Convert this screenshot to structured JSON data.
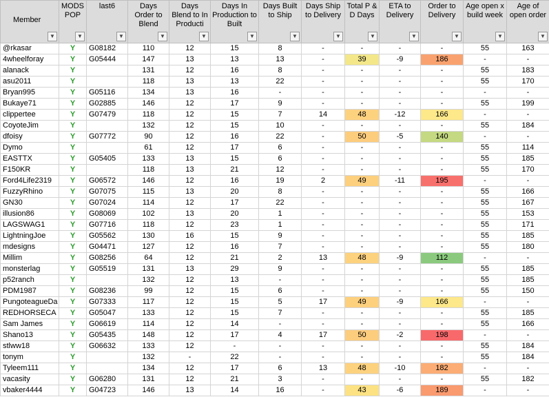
{
  "table": {
    "header": [
      "Member",
      "MODS POP",
      "last6",
      "Days Order to Blend",
      "Days Blend to In Producti",
      "Days In Production to Built",
      "Days Built to Ship",
      "Days Ship to Delivery",
      "Total P & D Days",
      "ETA to Delivery",
      "Order to Delivery",
      "Age open x build week",
      "Age of open order"
    ],
    "rows": [
      [
        "@rkasar",
        "Y",
        "G08182",
        "110",
        "12",
        "15",
        "8",
        "-",
        "-",
        "-",
        "-",
        "55",
        "163"
      ],
      [
        "4wheelforay",
        "Y",
        "G05444",
        "147",
        "13",
        "13",
        "13",
        "-",
        {
          "text": "39",
          "color": "#f3e78a"
        },
        "-9",
        {
          "text": "186",
          "color": "#f9a26f"
        },
        "-",
        "-"
      ],
      [
        "alanack",
        "Y",
        "",
        "131",
        "12",
        "16",
        "8",
        "-",
        "-",
        "-",
        "-",
        "55",
        "183"
      ],
      [
        "asu2011",
        "Y",
        "",
        "118",
        "13",
        "13",
        "22",
        "-",
        "-",
        "-",
        "-",
        "55",
        "170"
      ],
      [
        "Bryan995",
        "Y",
        "G05116",
        "134",
        "13",
        "16",
        "-",
        "-",
        "-",
        "-",
        "-",
        "-",
        "-"
      ],
      [
        "Bukaye71",
        "Y",
        "G02885",
        "146",
        "12",
        "17",
        "9",
        "-",
        "-",
        "-",
        "-",
        "55",
        "199"
      ],
      [
        "clippertee",
        "Y",
        "G07479",
        "118",
        "12",
        "15",
        "7",
        "14",
        {
          "text": "48",
          "color": "#fdd27f"
        },
        "-12",
        {
          "text": "166",
          "color": "#fde88a"
        },
        "-",
        "-"
      ],
      [
        "CoyoteJim",
        "Y",
        "",
        "132",
        "12",
        "15",
        "10",
        "-",
        "-",
        "-",
        "-",
        "55",
        "184"
      ],
      [
        "dfoisy",
        "Y",
        "G07772",
        "90",
        "12",
        "16",
        "22",
        "-",
        {
          "text": "50",
          "color": "#fdcd7e"
        },
        "-5",
        {
          "text": "140",
          "color": "#c4d981"
        },
        "-",
        "-"
      ],
      [
        "Dymo",
        "Y",
        "",
        "61",
        "12",
        "17",
        "6",
        "-",
        "-",
        "-",
        "-",
        "55",
        "114"
      ],
      [
        "EASTTX",
        "Y",
        "G05405",
        "133",
        "13",
        "15",
        "6",
        "-",
        "-",
        "-",
        "-",
        "55",
        "185"
      ],
      [
        "F150KR",
        "Y",
        "",
        "118",
        "13",
        "21",
        "12",
        "-",
        "-",
        "-",
        "-",
        "55",
        "170"
      ],
      [
        "Ford4Life2319",
        "Y",
        "G06572",
        "146",
        "12",
        "16",
        "19",
        "2",
        {
          "text": "49",
          "color": "#fdd07e"
        },
        "-11",
        {
          "text": "195",
          "color": "#f8706c"
        },
        "-",
        "-"
      ],
      [
        "FuzzyRhino",
        "Y",
        "G07075",
        "115",
        "13",
        "20",
        "8",
        "-",
        "-",
        "-",
        "-",
        "55",
        "166"
      ],
      [
        "GN30",
        "Y",
        "G07024",
        "114",
        "12",
        "17",
        "22",
        "-",
        "-",
        "-",
        "-",
        "55",
        "167"
      ],
      [
        "illusion86",
        "Y",
        "G08069",
        "102",
        "13",
        "20",
        "1",
        "-",
        "-",
        "-",
        "-",
        "55",
        "153"
      ],
      [
        "LAGSWAG1",
        "Y",
        "G07716",
        "118",
        "12",
        "23",
        "1",
        "-",
        "-",
        "-",
        "-",
        "55",
        "171"
      ],
      [
        "LightningJoe",
        "Y",
        "G05562",
        "130",
        "16",
        "15",
        "9",
        "-",
        "-",
        "-",
        "-",
        "55",
        "185"
      ],
      [
        "mdesigns",
        "Y",
        "G04471",
        "127",
        "12",
        "16",
        "7",
        "-",
        "-",
        "-",
        "-",
        "55",
        "180"
      ],
      [
        "Millim",
        "Y",
        "G08256",
        "64",
        "12",
        "21",
        "2",
        "13",
        {
          "text": "48",
          "color": "#fdd27f"
        },
        "-9",
        {
          "text": "112",
          "color": "#8bca7e"
        },
        "-",
        "-"
      ],
      [
        "monsterlag",
        "Y",
        "G05519",
        "131",
        "13",
        "29",
        "9",
        "-",
        "-",
        "-",
        "-",
        "55",
        "185"
      ],
      [
        "p52ranch",
        "Y",
        "",
        "132",
        "12",
        "13",
        "-",
        "-",
        "-",
        "-",
        "-",
        "55",
        "185"
      ],
      [
        "PDM1987",
        "Y",
        "G08236",
        "99",
        "12",
        "15",
        "6",
        "-",
        "-",
        "-",
        "-",
        "55",
        "150"
      ],
      [
        "PungoteagueDa",
        "Y",
        "G07333",
        "117",
        "12",
        "15",
        "5",
        "17",
        {
          "text": "49",
          "color": "#fdd07e"
        },
        "-9",
        {
          "text": "166",
          "color": "#fde88a"
        },
        "-",
        "-"
      ],
      [
        "REDHORSECA",
        "Y",
        "G05047",
        "133",
        "12",
        "15",
        "7",
        "-",
        "-",
        "-",
        "-",
        "55",
        "185"
      ],
      [
        "Sam James",
        "Y",
        "G06619",
        "114",
        "12",
        "14",
        "-",
        "-",
        "-",
        "-",
        "-",
        "55",
        "166"
      ],
      [
        "Shano13",
        "Y",
        "G05435",
        "148",
        "12",
        "17",
        "4",
        "17",
        {
          "text": "50",
          "color": "#fdcd7e"
        },
        "-2",
        {
          "text": "198",
          "color": "#f8696b"
        },
        "-",
        "-"
      ],
      [
        "stlww18",
        "Y",
        "G06632",
        "133",
        "12",
        "-",
        "-",
        "-",
        "-",
        "-",
        "-",
        "55",
        "184"
      ],
      [
        "tonym",
        "Y",
        "",
        "132",
        "-",
        "22",
        "-",
        "-",
        "-",
        "-",
        "-",
        "55",
        "184"
      ],
      [
        "Tyleem111",
        "Y",
        "",
        "134",
        "12",
        "17",
        "6",
        "13",
        {
          "text": "48",
          "color": "#fdd27f"
        },
        "-10",
        {
          "text": "182",
          "color": "#fbad75"
        },
        "-",
        "-"
      ],
      [
        "vacasity",
        "Y",
        "G06280",
        "131",
        "12",
        "21",
        "3",
        "-",
        "-",
        "-",
        "-",
        "55",
        "182"
      ],
      [
        "vbaker4444",
        "Y",
        "G04723",
        "146",
        "13",
        "14",
        "16",
        "-",
        {
          "text": "43",
          "color": "#fde283"
        },
        "-6",
        {
          "text": "189",
          "color": "#f99a6f"
        },
        "-",
        "-"
      ]
    ]
  }
}
